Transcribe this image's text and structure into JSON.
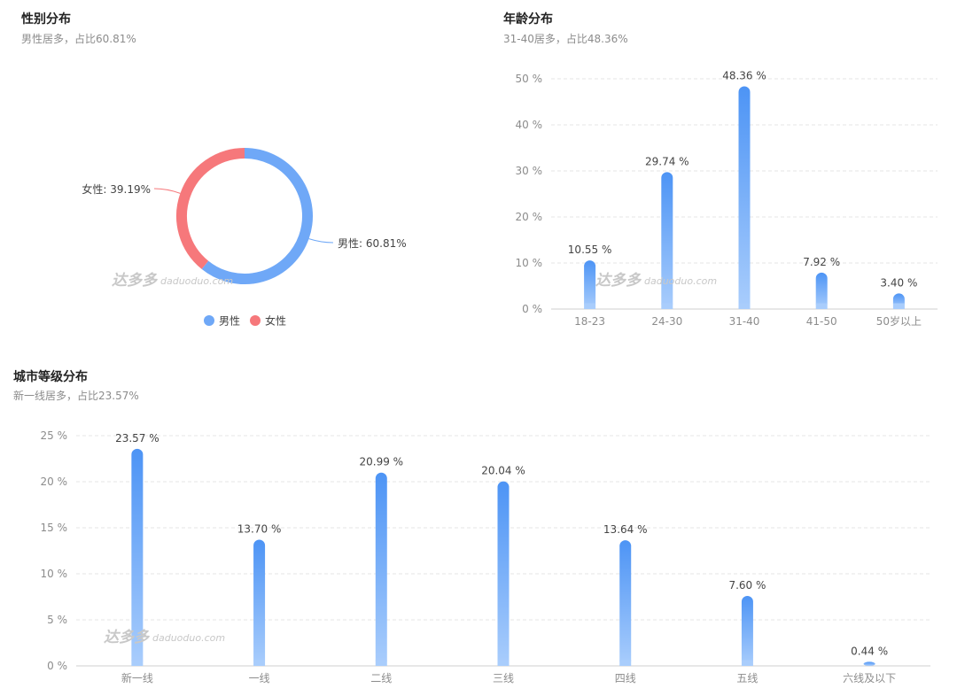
{
  "gender": {
    "title": "性别分布",
    "subtitle": "男性居多，占比60.81%",
    "chart_data": {
      "type": "pie",
      "variant": "donut",
      "slices": [
        {
          "name": "男性",
          "value": 60.81,
          "label": "男性: 60.81%",
          "color": "#6fa8f7"
        },
        {
          "name": "女性",
          "value": 39.19,
          "label": "女性: 39.19%",
          "color": "#f6787b"
        }
      ],
      "legend": [
        "男性",
        "女性"
      ],
      "legend_position": "bottom"
    }
  },
  "age": {
    "title": "年龄分布",
    "subtitle": "31-40居多，占比48.36%",
    "chart_data": {
      "type": "bar",
      "categories": [
        "18-23",
        "24-30",
        "31-40",
        "41-50",
        "50岁以上"
      ],
      "values": [
        10.55,
        29.74,
        48.36,
        7.92,
        3.4
      ],
      "value_labels": [
        "10.55 %",
        "29.74 %",
        "48.36 %",
        "7.92 %",
        "3.40 %"
      ],
      "ylim": [
        0,
        50
      ],
      "yticks": [
        0,
        10,
        20,
        30,
        40,
        50
      ],
      "ytick_labels": [
        "0 %",
        "10 %",
        "20 %",
        "30 %",
        "40 %",
        "50 %"
      ],
      "grid": true,
      "bar_color_top": "#4d94f5",
      "bar_color_bottom": "#a9cdfc"
    }
  },
  "city": {
    "title": "城市等级分布",
    "subtitle": "新一线居多，占比23.57%",
    "chart_data": {
      "type": "bar",
      "categories": [
        "新一线",
        "一线",
        "二线",
        "三线",
        "四线",
        "五线",
        "六线及以下"
      ],
      "values": [
        23.57,
        13.7,
        20.99,
        20.04,
        13.64,
        7.6,
        0.44
      ],
      "value_labels": [
        "23.57 %",
        "13.70 %",
        "20.99 %",
        "20.04 %",
        "13.64 %",
        "7.60 %",
        "0.44 %"
      ],
      "ylim": [
        0,
        25
      ],
      "yticks": [
        0,
        5,
        10,
        15,
        20,
        25
      ],
      "ytick_labels": [
        "0 %",
        "5 %",
        "10 %",
        "15 %",
        "20 %",
        "25 %"
      ],
      "grid": true,
      "bar_color_top": "#4d94f5",
      "bar_color_bottom": "#a9cdfc"
    }
  },
  "watermark": {
    "cn": "达多多",
    "en": "daduoduo.com"
  }
}
